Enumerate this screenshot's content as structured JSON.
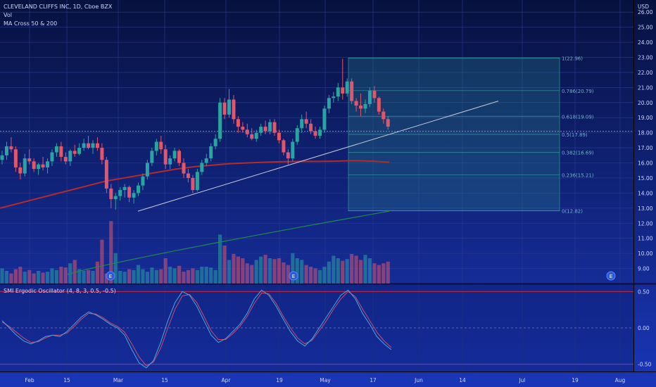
{
  "header": {
    "symbol_line": "CLEVELAND CLIFFS INC, 1D, Cboe BZX",
    "vol_label": "Vol",
    "ma_label": "MA Cross 50 & 200",
    "currency": "USD"
  },
  "oscillator": {
    "title": "SMI Ergodic Oscillator (4, 8, 3, 0.5, -0.5)",
    "levels": [
      "0.50",
      "0.00",
      "-0.50"
    ]
  },
  "colors": {
    "background": "#0b1a66",
    "up": "#2aa3a3",
    "down": "#e0566b",
    "ma50": "#b52a2a",
    "ma200": "#1f8a4c",
    "fib_box": "#2a8c8c",
    "trendline": "#c8c8d8",
    "osc_signal": "#d04a6a",
    "osc_main": "#4aa8d8",
    "level_line": "#d02a3a"
  },
  "chart_data": [
    {
      "type": "candlestick",
      "y_axis_ticks": [
        "26.00",
        "25.00",
        "24.00",
        "23.00",
        "22.00",
        "21.00",
        "20.00",
        "19.00",
        "18.00",
        "17.00",
        "16.00",
        "15.00",
        "14.00",
        "13.00",
        "12.00",
        "11.00",
        "10.00",
        "9.00"
      ],
      "ylim": [
        8.0,
        26.8
      ],
      "x_ticks": [
        "Feb",
        "15",
        "Mar",
        "15",
        "Apr",
        "19",
        "May",
        "17",
        "Jun",
        "14",
        "Jul",
        "19",
        "Aug"
      ],
      "last_price_line": 18.1,
      "candles": [
        {
          "o": 16.2,
          "h": 16.8,
          "l": 15.9,
          "c": 16.5
        },
        {
          "o": 16.5,
          "h": 17.4,
          "l": 16.2,
          "c": 17.1
        },
        {
          "o": 17.1,
          "h": 17.7,
          "l": 16.7,
          "c": 16.9
        },
        {
          "o": 16.9,
          "h": 17.1,
          "l": 15.4,
          "c": 15.7
        },
        {
          "o": 15.7,
          "h": 16.0,
          "l": 14.9,
          "c": 15.3
        },
        {
          "o": 15.3,
          "h": 16.6,
          "l": 15.1,
          "c": 16.3
        },
        {
          "o": 16.3,
          "h": 16.9,
          "l": 15.9,
          "c": 16.1
        },
        {
          "o": 16.1,
          "h": 16.3,
          "l": 15.4,
          "c": 15.6
        },
        {
          "o": 15.6,
          "h": 16.0,
          "l": 15.2,
          "c": 15.9
        },
        {
          "o": 15.9,
          "h": 16.4,
          "l": 15.5,
          "c": 15.7
        },
        {
          "o": 15.7,
          "h": 16.3,
          "l": 15.3,
          "c": 16.1
        },
        {
          "o": 16.1,
          "h": 16.9,
          "l": 15.8,
          "c": 16.7
        },
        {
          "o": 16.7,
          "h": 17.3,
          "l": 16.4,
          "c": 17.1
        },
        {
          "o": 17.1,
          "h": 17.4,
          "l": 16.1,
          "c": 16.4
        },
        {
          "o": 16.4,
          "h": 16.7,
          "l": 15.9,
          "c": 16.1
        },
        {
          "o": 16.1,
          "h": 16.9,
          "l": 15.8,
          "c": 16.8
        },
        {
          "o": 16.8,
          "h": 17.2,
          "l": 16.4,
          "c": 16.6
        },
        {
          "o": 16.6,
          "h": 17.3,
          "l": 16.5,
          "c": 17.0
        },
        {
          "o": 17.0,
          "h": 17.6,
          "l": 16.8,
          "c": 17.3
        },
        {
          "o": 17.3,
          "h": 17.8,
          "l": 16.9,
          "c": 17.0
        },
        {
          "o": 17.0,
          "h": 17.5,
          "l": 16.6,
          "c": 17.3
        },
        {
          "o": 17.3,
          "h": 17.7,
          "l": 16.8,
          "c": 17.0
        },
        {
          "o": 17.0,
          "h": 17.3,
          "l": 15.9,
          "c": 16.2
        },
        {
          "o": 16.2,
          "h": 16.4,
          "l": 14.0,
          "c": 14.3
        },
        {
          "o": 14.3,
          "h": 14.6,
          "l": 13.0,
          "c": 13.6
        },
        {
          "o": 13.6,
          "h": 14.0,
          "l": 12.9,
          "c": 13.8
        },
        {
          "o": 13.8,
          "h": 14.4,
          "l": 13.5,
          "c": 14.2
        },
        {
          "o": 14.2,
          "h": 14.6,
          "l": 13.7,
          "c": 14.4
        },
        {
          "o": 14.4,
          "h": 14.5,
          "l": 13.4,
          "c": 13.7
        },
        {
          "o": 13.7,
          "h": 14.2,
          "l": 13.3,
          "c": 14.0
        },
        {
          "o": 14.0,
          "h": 14.7,
          "l": 13.8,
          "c": 14.5
        },
        {
          "o": 14.5,
          "h": 15.3,
          "l": 14.2,
          "c": 15.1
        },
        {
          "o": 15.1,
          "h": 16.2,
          "l": 14.9,
          "c": 16.0
        },
        {
          "o": 16.0,
          "h": 17.0,
          "l": 15.8,
          "c": 16.8
        },
        {
          "o": 16.8,
          "h": 17.6,
          "l": 16.5,
          "c": 17.4
        },
        {
          "o": 17.4,
          "h": 17.8,
          "l": 16.6,
          "c": 16.9
        },
        {
          "o": 16.9,
          "h": 17.2,
          "l": 15.6,
          "c": 15.9
        },
        {
          "o": 15.9,
          "h": 16.5,
          "l": 15.6,
          "c": 16.3
        },
        {
          "o": 16.3,
          "h": 17.0,
          "l": 16.1,
          "c": 16.8
        },
        {
          "o": 16.8,
          "h": 16.9,
          "l": 15.8,
          "c": 16.0
        },
        {
          "o": 16.0,
          "h": 16.3,
          "l": 15.0,
          "c": 15.3
        },
        {
          "o": 15.3,
          "h": 15.6,
          "l": 14.7,
          "c": 15.0
        },
        {
          "o": 15.0,
          "h": 15.2,
          "l": 14.0,
          "c": 14.2
        },
        {
          "o": 14.2,
          "h": 15.6,
          "l": 14.1,
          "c": 15.4
        },
        {
          "o": 15.4,
          "h": 16.2,
          "l": 15.2,
          "c": 16.0
        },
        {
          "o": 16.0,
          "h": 16.6,
          "l": 15.8,
          "c": 16.3
        },
        {
          "o": 16.3,
          "h": 17.3,
          "l": 16.1,
          "c": 17.1
        },
        {
          "o": 17.1,
          "h": 17.9,
          "l": 16.9,
          "c": 17.6
        },
        {
          "o": 17.6,
          "h": 20.3,
          "l": 17.4,
          "c": 20.0
        },
        {
          "o": 20.0,
          "h": 20.3,
          "l": 18.9,
          "c": 19.2
        },
        {
          "o": 19.2,
          "h": 20.9,
          "l": 19.0,
          "c": 20.2
        },
        {
          "o": 20.2,
          "h": 20.5,
          "l": 18.6,
          "c": 18.9
        },
        {
          "o": 18.9,
          "h": 19.1,
          "l": 18.0,
          "c": 18.4
        },
        {
          "o": 18.4,
          "h": 18.7,
          "l": 18.0,
          "c": 18.2
        },
        {
          "o": 18.2,
          "h": 18.6,
          "l": 17.7,
          "c": 17.9
        },
        {
          "o": 17.9,
          "h": 18.3,
          "l": 17.5,
          "c": 17.6
        },
        {
          "o": 17.6,
          "h": 18.2,
          "l": 17.4,
          "c": 18.0
        },
        {
          "o": 18.0,
          "h": 18.6,
          "l": 17.8,
          "c": 18.4
        },
        {
          "o": 18.4,
          "h": 18.8,
          "l": 17.9,
          "c": 18.1
        },
        {
          "o": 18.1,
          "h": 18.9,
          "l": 17.9,
          "c": 18.7
        },
        {
          "o": 18.7,
          "h": 18.9,
          "l": 17.8,
          "c": 18.0
        },
        {
          "o": 18.0,
          "h": 18.2,
          "l": 17.3,
          "c": 17.5
        },
        {
          "o": 17.5,
          "h": 17.6,
          "l": 16.5,
          "c": 16.7
        },
        {
          "o": 16.7,
          "h": 16.9,
          "l": 15.9,
          "c": 16.3
        },
        {
          "o": 16.3,
          "h": 17.6,
          "l": 16.1,
          "c": 17.4
        },
        {
          "o": 17.4,
          "h": 18.5,
          "l": 17.2,
          "c": 18.3
        },
        {
          "o": 18.3,
          "h": 19.2,
          "l": 18.0,
          "c": 18.9
        },
        {
          "o": 18.9,
          "h": 19.4,
          "l": 18.3,
          "c": 18.6
        },
        {
          "o": 18.6,
          "h": 18.9,
          "l": 17.9,
          "c": 18.1
        },
        {
          "o": 18.1,
          "h": 18.4,
          "l": 17.6,
          "c": 17.8
        },
        {
          "o": 17.8,
          "h": 18.4,
          "l": 17.6,
          "c": 18.2
        },
        {
          "o": 18.2,
          "h": 19.8,
          "l": 18.0,
          "c": 19.6
        },
        {
          "o": 19.6,
          "h": 20.5,
          "l": 19.3,
          "c": 20.3
        },
        {
          "o": 20.3,
          "h": 20.7,
          "l": 20.0,
          "c": 20.4
        },
        {
          "o": 20.4,
          "h": 21.3,
          "l": 20.1,
          "c": 21.0
        },
        {
          "o": 21.0,
          "h": 22.9,
          "l": 20.2,
          "c": 20.6
        },
        {
          "o": 20.6,
          "h": 21.6,
          "l": 20.4,
          "c": 21.4
        },
        {
          "o": 21.4,
          "h": 21.6,
          "l": 19.9,
          "c": 20.1
        },
        {
          "o": 20.1,
          "h": 20.3,
          "l": 19.4,
          "c": 19.8
        },
        {
          "o": 19.8,
          "h": 20.6,
          "l": 19.1,
          "c": 19.6
        },
        {
          "o": 19.6,
          "h": 20.2,
          "l": 19.3,
          "c": 19.9
        },
        {
          "o": 19.9,
          "h": 21.0,
          "l": 19.7,
          "c": 20.8
        },
        {
          "o": 20.8,
          "h": 21.1,
          "l": 20.0,
          "c": 20.3
        },
        {
          "o": 20.3,
          "h": 20.4,
          "l": 19.2,
          "c": 19.4
        },
        {
          "o": 19.4,
          "h": 19.6,
          "l": 18.6,
          "c": 18.9
        },
        {
          "o": 18.9,
          "h": 19.1,
          "l": 18.2,
          "c": 18.4
        }
      ],
      "volume": [
        0.18,
        0.15,
        0.12,
        0.17,
        0.2,
        0.14,
        0.16,
        0.12,
        0.15,
        0.13,
        0.14,
        0.18,
        0.16,
        0.2,
        0.19,
        0.24,
        0.28,
        0.17,
        0.15,
        0.16,
        0.15,
        0.26,
        0.52,
        0.12,
        0.74,
        0.36,
        0.15,
        0.14,
        0.17,
        0.16,
        0.22,
        0.17,
        0.14,
        0.19,
        0.16,
        0.17,
        0.3,
        0.2,
        0.18,
        0.21,
        0.14,
        0.16,
        0.18,
        0.16,
        0.2,
        0.2,
        0.19,
        0.16,
        0.58,
        0.45,
        0.28,
        0.35,
        0.32,
        0.3,
        0.24,
        0.22,
        0.28,
        0.32,
        0.34,
        0.3,
        0.29,
        0.3,
        0.25,
        0.22,
        0.36,
        0.3,
        0.28,
        0.22,
        0.2,
        0.18,
        0.16,
        0.2,
        0.26,
        0.33,
        0.3,
        0.27,
        0.29,
        0.35,
        0.33,
        0.28,
        0.34,
        0.3,
        0.24,
        0.22,
        0.24,
        0.26
      ],
      "ma50": [
        13.0,
        13.3,
        13.6,
        13.9,
        14.2,
        14.5,
        14.8,
        15.0,
        15.2,
        15.4,
        15.6,
        15.75,
        15.85,
        15.95,
        16.0,
        16.05,
        16.08,
        16.1,
        16.1,
        16.12,
        16.15,
        16.12,
        16.05
      ],
      "ma200_start": 8.6,
      "ma200_end": 12.8,
      "fib_levels": [
        {
          "label": "1(22.96)",
          "value": 22.96
        },
        {
          "label": "0.786(20.79)",
          "value": 20.79
        },
        {
          "label": "0.618(19.09)",
          "value": 19.09
        },
        {
          "label": "0.5(17.89)",
          "value": 17.89
        },
        {
          "label": "0.382(16.69)",
          "value": 16.69
        },
        {
          "label": "0.236(15.21)",
          "value": 15.21
        },
        {
          "label": "0(12.82)",
          "value": 12.82
        }
      ],
      "earnings_markers": [
        "E",
        "E",
        "E",
        "E"
      ]
    },
    {
      "type": "line",
      "ylim": [
        -0.6,
        0.6
      ],
      "smi": [
        0.1,
        0.0,
        -0.1,
        -0.18,
        -0.22,
        -0.18,
        -0.12,
        -0.1,
        -0.12,
        -0.05,
        0.05,
        0.15,
        0.22,
        0.18,
        0.12,
        0.05,
        0.0,
        -0.1,
        -0.3,
        -0.48,
        -0.55,
        -0.45,
        -0.2,
        0.1,
        0.35,
        0.5,
        0.45,
        0.3,
        0.1,
        -0.1,
        -0.2,
        -0.15,
        -0.05,
        0.05,
        0.2,
        0.4,
        0.52,
        0.45,
        0.3,
        0.12,
        -0.05,
        -0.18,
        -0.25,
        -0.15,
        0.0,
        0.15,
        0.3,
        0.45,
        0.52,
        0.4,
        0.2,
        0.05,
        -0.12,
        -0.22,
        -0.3
      ],
      "signal": [
        0.08,
        0.02,
        -0.06,
        -0.14,
        -0.2,
        -0.19,
        -0.14,
        -0.1,
        -0.1,
        -0.07,
        0.02,
        0.12,
        0.2,
        0.19,
        0.14,
        0.07,
        0.02,
        -0.06,
        -0.22,
        -0.4,
        -0.52,
        -0.47,
        -0.28,
        0.0,
        0.26,
        0.44,
        0.46,
        0.35,
        0.16,
        -0.04,
        -0.16,
        -0.16,
        -0.08,
        0.02,
        0.16,
        0.34,
        0.48,
        0.47,
        0.34,
        0.16,
        0.0,
        -0.14,
        -0.22,
        -0.17,
        -0.04,
        0.1,
        0.26,
        0.4,
        0.5,
        0.43,
        0.26,
        0.1,
        -0.06,
        -0.18,
        -0.27
      ]
    }
  ]
}
